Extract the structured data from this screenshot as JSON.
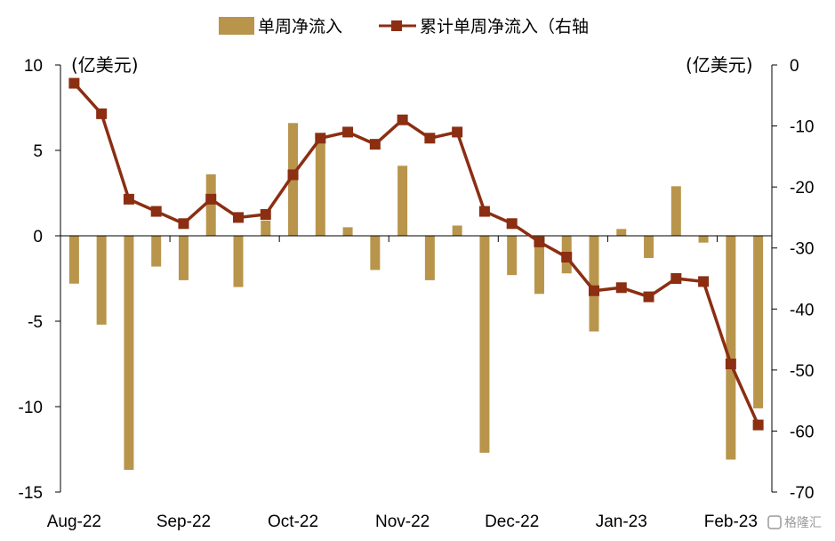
{
  "chart_data": {
    "type": "bar+line",
    "legend": [
      {
        "label": "单周净流入",
        "kind": "bar",
        "color": "#b8954b"
      },
      {
        "label": "累计单周净流入（右轴",
        "kind": "line",
        "color": "#8b2e12"
      }
    ],
    "left_unit": "(亿美元)",
    "right_unit": "(亿美元)",
    "left_axis": {
      "min": -15,
      "max": 10,
      "ticks": [
        10,
        5,
        0,
        -5,
        -10,
        -15
      ]
    },
    "right_axis": {
      "min": -70,
      "max": 0,
      "ticks": [
        0,
        -10,
        -20,
        -30,
        -40,
        -50,
        -60,
        -70
      ]
    },
    "x_tick_labels": [
      "Aug-22",
      "Sep-22",
      "Oct-22",
      "Nov-22",
      "Dec-22",
      "Jan-23",
      "Feb-23"
    ],
    "x_tick_index": [
      0,
      4,
      8,
      12,
      16,
      20,
      24
    ],
    "bar_values": [
      -2.8,
      -5.2,
      -13.7,
      -1.8,
      -2.6,
      3.6,
      -3.0,
      0.9,
      6.6,
      6.0,
      0.5,
      -2.0,
      4.1,
      -2.6,
      0.6,
      -12.7,
      -2.3,
      -3.4,
      -2.2,
      -5.6,
      0.4,
      -1.3,
      2.9,
      -0.4,
      -13.1,
      -10.1
    ],
    "line_values": [
      -3,
      -8,
      -22,
      -24,
      -26,
      -22,
      -25,
      -24.5,
      -18,
      -12,
      -11,
      -13,
      -9,
      -12,
      -11,
      -24,
      -26,
      -29,
      -31.5,
      -37,
      -36.5,
      -38,
      -35,
      -35.5,
      -49,
      -59
    ],
    "watermark": "格隆汇"
  }
}
